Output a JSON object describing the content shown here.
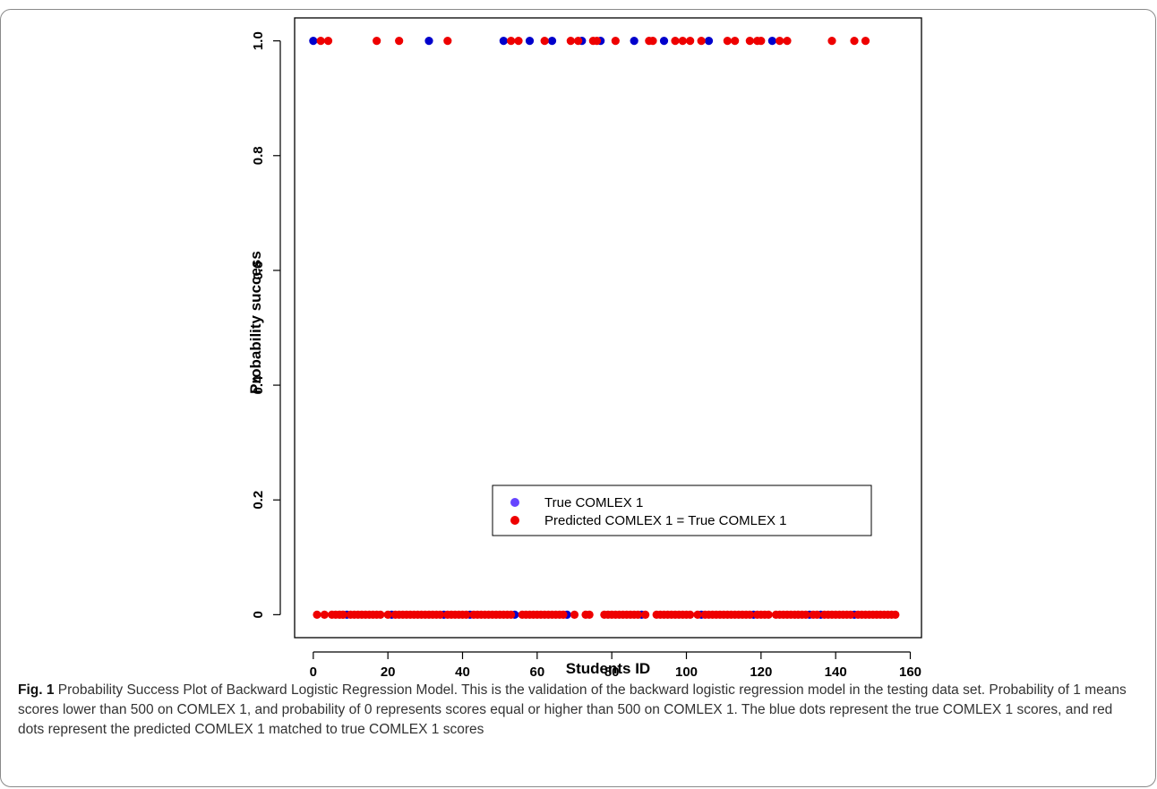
{
  "caption": {
    "label": "Fig. 1",
    "text": "Probability Success Plot of Backward Logistic Regression Model. This is the validation of the backward logistic regression model in the testing data set. Probability of 1 means scores lower than 500 on COMLEX 1, and probability of 0 represents scores equal or higher than 500 on COMLEX 1. The blue dots represent the true COMLEX 1 scores, and red dots represent the predicted COMLEX 1 matched to true COMLEX 1 scores"
  },
  "colors": {
    "true": "#0000cc",
    "predicted": "#ee0000",
    "legend_true": "#6644ff"
  },
  "chart_data": {
    "type": "scatter",
    "xlabel": "Students ID",
    "ylabel": "Probability success",
    "xlim": [
      -5,
      163
    ],
    "ylim": [
      -0.04,
      1.04
    ],
    "xticks": [
      0,
      20,
      40,
      60,
      80,
      100,
      120,
      140,
      160
    ],
    "yticks": [
      0,
      0.2,
      0.4,
      0.6,
      0.8,
      1.0
    ],
    "xtick_labels": [
      "0",
      "20",
      "40",
      "60",
      "80",
      "100",
      "120",
      "140",
      "160"
    ],
    "ytick_labels": [
      "0",
      "0.2",
      "0.4",
      "0.6",
      "0.8",
      "1.0"
    ],
    "legend": {
      "position": "lower-center",
      "entries": [
        "True COMLEX 1",
        "Predicted COMLEX 1 = True COMLEX 1"
      ]
    },
    "series": [
      {
        "name": "True COMLEX 1",
        "points": [
          [
            0,
            1
          ],
          [
            31,
            1
          ],
          [
            51,
            1
          ],
          [
            58,
            1
          ],
          [
            64,
            1
          ],
          [
            72,
            1
          ],
          [
            77,
            1
          ],
          [
            86,
            1
          ],
          [
            94,
            1
          ],
          [
            106,
            1
          ],
          [
            123,
            1
          ],
          [
            9,
            0
          ],
          [
            21,
            0
          ],
          [
            35,
            0
          ],
          [
            42,
            0
          ],
          [
            54,
            0
          ],
          [
            68,
            0
          ],
          [
            88,
            0
          ],
          [
            104,
            0
          ],
          [
            118,
            0
          ],
          [
            133,
            0
          ],
          [
            136,
            0
          ],
          [
            145,
            0
          ]
        ]
      },
      {
        "name": "Predicted COMLEX 1 = True COMLEX 1",
        "points": [
          [
            2,
            1
          ],
          [
            4,
            1
          ],
          [
            17,
            1
          ],
          [
            23,
            1
          ],
          [
            36,
            1
          ],
          [
            53,
            1
          ],
          [
            55,
            1
          ],
          [
            62,
            1
          ],
          [
            69,
            1
          ],
          [
            71,
            1
          ],
          [
            75,
            1
          ],
          [
            76,
            1
          ],
          [
            81,
            1
          ],
          [
            90,
            1
          ],
          [
            91,
            1
          ],
          [
            97,
            1
          ],
          [
            99,
            1
          ],
          [
            101,
            1
          ],
          [
            104,
            1
          ],
          [
            111,
            1
          ],
          [
            113,
            1
          ],
          [
            117,
            1
          ],
          [
            119,
            1
          ],
          [
            120,
            1
          ],
          [
            125,
            1
          ],
          [
            127,
            1
          ],
          [
            139,
            1
          ],
          [
            145,
            1
          ],
          [
            148,
            1
          ],
          [
            1,
            0
          ],
          [
            3,
            0
          ],
          [
            5,
            0
          ],
          [
            6,
            0
          ],
          [
            7,
            0
          ],
          [
            8,
            0
          ],
          [
            10,
            0
          ],
          [
            11,
            0
          ],
          [
            12,
            0
          ],
          [
            13,
            0
          ],
          [
            14,
            0
          ],
          [
            15,
            0
          ],
          [
            16,
            0
          ],
          [
            17,
            0
          ],
          [
            18,
            0
          ],
          [
            20,
            0
          ],
          [
            22,
            0
          ],
          [
            23,
            0
          ],
          [
            24,
            0
          ],
          [
            25,
            0
          ],
          [
            26,
            0
          ],
          [
            27,
            0
          ],
          [
            28,
            0
          ],
          [
            29,
            0
          ],
          [
            30,
            0
          ],
          [
            31,
            0
          ],
          [
            32,
            0
          ],
          [
            33,
            0
          ],
          [
            34,
            0
          ],
          [
            36,
            0
          ],
          [
            37,
            0
          ],
          [
            38,
            0
          ],
          [
            39,
            0
          ],
          [
            40,
            0
          ],
          [
            41,
            0
          ],
          [
            43,
            0
          ],
          [
            44,
            0
          ],
          [
            45,
            0
          ],
          [
            46,
            0
          ],
          [
            47,
            0
          ],
          [
            48,
            0
          ],
          [
            49,
            0
          ],
          [
            50,
            0
          ],
          [
            51,
            0
          ],
          [
            52,
            0
          ],
          [
            53,
            0
          ],
          [
            56,
            0
          ],
          [
            57,
            0
          ],
          [
            58,
            0
          ],
          [
            59,
            0
          ],
          [
            60,
            0
          ],
          [
            61,
            0
          ],
          [
            62,
            0
          ],
          [
            63,
            0
          ],
          [
            64,
            0
          ],
          [
            65,
            0
          ],
          [
            66,
            0
          ],
          [
            67,
            0
          ],
          [
            70,
            0
          ],
          [
            73,
            0
          ],
          [
            74,
            0
          ],
          [
            78,
            0
          ],
          [
            79,
            0
          ],
          [
            80,
            0
          ],
          [
            81,
            0
          ],
          [
            82,
            0
          ],
          [
            83,
            0
          ],
          [
            84,
            0
          ],
          [
            85,
            0
          ],
          [
            86,
            0
          ],
          [
            87,
            0
          ],
          [
            89,
            0
          ],
          [
            92,
            0
          ],
          [
            93,
            0
          ],
          [
            94,
            0
          ],
          [
            95,
            0
          ],
          [
            96,
            0
          ],
          [
            97,
            0
          ],
          [
            98,
            0
          ],
          [
            99,
            0
          ],
          [
            100,
            0
          ],
          [
            101,
            0
          ],
          [
            103,
            0
          ],
          [
            105,
            0
          ],
          [
            106,
            0
          ],
          [
            107,
            0
          ],
          [
            108,
            0
          ],
          [
            109,
            0
          ],
          [
            110,
            0
          ],
          [
            111,
            0
          ],
          [
            112,
            0
          ],
          [
            113,
            0
          ],
          [
            114,
            0
          ],
          [
            115,
            0
          ],
          [
            116,
            0
          ],
          [
            117,
            0
          ],
          [
            119,
            0
          ],
          [
            120,
            0
          ],
          [
            121,
            0
          ],
          [
            122,
            0
          ],
          [
            124,
            0
          ],
          [
            125,
            0
          ],
          [
            126,
            0
          ],
          [
            127,
            0
          ],
          [
            128,
            0
          ],
          [
            129,
            0
          ],
          [
            130,
            0
          ],
          [
            131,
            0
          ],
          [
            132,
            0
          ],
          [
            134,
            0
          ],
          [
            135,
            0
          ],
          [
            137,
            0
          ],
          [
            138,
            0
          ],
          [
            139,
            0
          ],
          [
            140,
            0
          ],
          [
            141,
            0
          ],
          [
            142,
            0
          ],
          [
            143,
            0
          ],
          [
            144,
            0
          ],
          [
            146,
            0
          ],
          [
            147,
            0
          ],
          [
            148,
            0
          ],
          [
            149,
            0
          ],
          [
            150,
            0
          ],
          [
            151,
            0
          ],
          [
            152,
            0
          ],
          [
            153,
            0
          ],
          [
            154,
            0
          ],
          [
            155,
            0
          ],
          [
            156,
            0
          ]
        ]
      }
    ]
  }
}
